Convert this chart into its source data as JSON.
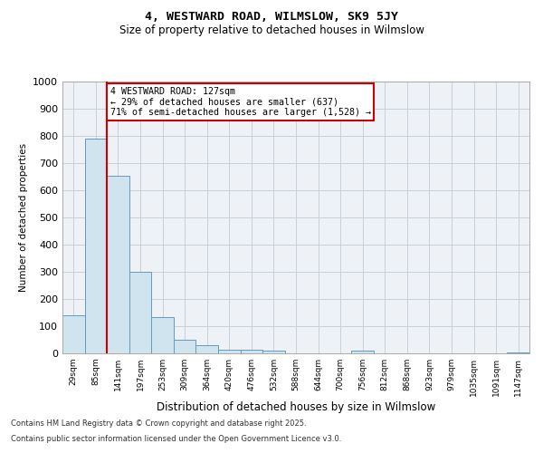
{
  "title1": "4, WESTWARD ROAD, WILMSLOW, SK9 5JY",
  "title2": "Size of property relative to detached houses in Wilmslow",
  "xlabel": "Distribution of detached houses by size in Wilmslow",
  "ylabel": "Number of detached properties",
  "bin_labels": [
    "29sqm",
    "85sqm",
    "141sqm",
    "197sqm",
    "253sqm",
    "309sqm",
    "364sqm",
    "420sqm",
    "476sqm",
    "532sqm",
    "588sqm",
    "644sqm",
    "700sqm",
    "756sqm",
    "812sqm",
    "868sqm",
    "923sqm",
    "979sqm",
    "1035sqm",
    "1091sqm",
    "1147sqm"
  ],
  "bar_values": [
    140,
    790,
    655,
    300,
    135,
    50,
    30,
    15,
    12,
    10,
    0,
    0,
    0,
    10,
    0,
    0,
    0,
    0,
    0,
    0,
    5
  ],
  "bar_color": "#d0e4f0",
  "bar_edge_color": "#6699bb",
  "property_sqm": 127,
  "annotation_line1": "4 WESTWARD ROAD: 127sqm",
  "annotation_line2": "← 29% of detached houses are smaller (637)",
  "annotation_line3": "71% of semi-detached houses are larger (1,528) →",
  "annotation_box_color": "#ffffff",
  "annotation_box_edge": "#cc0000",
  "ylim": [
    0,
    1000
  ],
  "yticks": [
    0,
    100,
    200,
    300,
    400,
    500,
    600,
    700,
    800,
    900,
    1000
  ],
  "grid_color": "#c8d0d8",
  "background_color": "#eef2f7",
  "red_line_color": "#cc0000",
  "footer1": "Contains HM Land Registry data © Crown copyright and database right 2025.",
  "footer2": "Contains public sector information licensed under the Open Government Licence v3.0."
}
